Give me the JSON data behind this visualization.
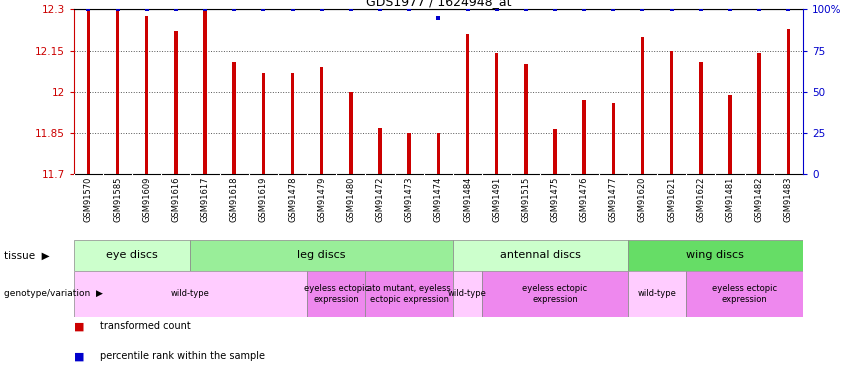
{
  "title": "GDS1977 / 1624948_at",
  "samples": [
    "GSM91570",
    "GSM91585",
    "GSM91609",
    "GSM91616",
    "GSM91617",
    "GSM91618",
    "GSM91619",
    "GSM91478",
    "GSM91479",
    "GSM91480",
    "GSM91472",
    "GSM91473",
    "GSM91474",
    "GSM91484",
    "GSM91491",
    "GSM91515",
    "GSM91475",
    "GSM91476",
    "GSM91477",
    "GSM91620",
    "GSM91621",
    "GSM91622",
    "GSM91481",
    "GSM91482",
    "GSM91483"
  ],
  "bar_values": [
    12.3,
    12.3,
    12.275,
    12.22,
    12.3,
    12.11,
    12.07,
    12.07,
    12.09,
    12.0,
    11.87,
    11.85,
    11.85,
    12.21,
    12.14,
    12.1,
    11.865,
    11.97,
    11.96,
    12.2,
    12.15,
    12.11,
    11.99,
    12.14,
    12.23
  ],
  "percentile_values": [
    100,
    100,
    100,
    100,
    100,
    100,
    100,
    100,
    100,
    100,
    100,
    100,
    95,
    100,
    100,
    100,
    100,
    100,
    100,
    100,
    100,
    100,
    100,
    100,
    100
  ],
  "ymin": 11.7,
  "ymax": 12.3,
  "yticks": [
    11.7,
    11.85,
    12.0,
    12.15,
    12.3
  ],
  "ytick_labels": [
    "11.7",
    "11.85",
    "12",
    "12.15",
    "12.3"
  ],
  "right_yticks": [
    0,
    25,
    50,
    75,
    100
  ],
  "right_ytick_labels": [
    "0",
    "25",
    "50",
    "75",
    "100%"
  ],
  "bar_color": "#cc0000",
  "dot_color": "#0000cc",
  "tissue_groups": [
    {
      "label": "eye discs",
      "start": 0,
      "end": 3,
      "color": "#ccffcc"
    },
    {
      "label": "leg discs",
      "start": 4,
      "end": 12,
      "color": "#99ee99"
    },
    {
      "label": "antennal discs",
      "start": 13,
      "end": 18,
      "color": "#ccffcc"
    },
    {
      "label": "wing discs",
      "start": 19,
      "end": 24,
      "color": "#66dd66"
    }
  ],
  "genotype_groups": [
    {
      "label": "wild-type",
      "start": 0,
      "end": 7,
      "color": "#ffccff"
    },
    {
      "label": "eyeless ectopic\nexpression",
      "start": 8,
      "end": 9,
      "color": "#ee88ee"
    },
    {
      "label": "ato mutant, eyeless\nectopic expression",
      "start": 10,
      "end": 12,
      "color": "#ee88ee"
    },
    {
      "label": "wild-type",
      "start": 13,
      "end": 13,
      "color": "#ffccff"
    },
    {
      "label": "eyeless ectopic\nexpression",
      "start": 14,
      "end": 18,
      "color": "#ee88ee"
    },
    {
      "label": "wild-type",
      "start": 19,
      "end": 20,
      "color": "#ffccff"
    },
    {
      "label": "eyeless ectopic\nexpression",
      "start": 21,
      "end": 24,
      "color": "#ee88ee"
    }
  ],
  "legend_bar_label": "transformed count",
  "legend_dot_label": "percentile rank within the sample",
  "xlab_bg_color": "#cccccc",
  "xlab_divider_color": "#ffffff"
}
